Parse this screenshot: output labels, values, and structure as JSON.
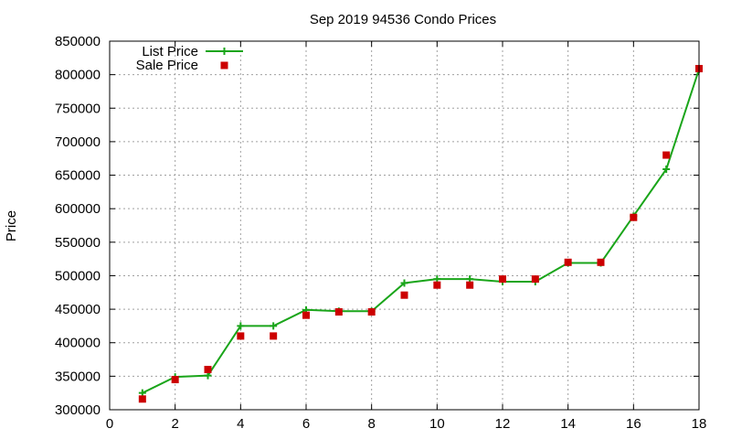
{
  "chart_data": {
    "type": "line",
    "title": "Sep 2019 94536 Condo Prices",
    "xlabel": "",
    "ylabel": "Price",
    "xlim": [
      0,
      18
    ],
    "ylim": [
      300000,
      850000
    ],
    "x_ticks": [
      0,
      2,
      4,
      6,
      8,
      10,
      12,
      14,
      16,
      18
    ],
    "y_ticks": [
      300000,
      350000,
      400000,
      450000,
      500000,
      550000,
      600000,
      650000,
      700000,
      750000,
      800000,
      850000
    ],
    "x_tick_labels": [
      "0",
      "2",
      "4",
      "6",
      "8",
      "10",
      "12",
      "14",
      "16",
      "18"
    ],
    "y_tick_labels": [
      "300000",
      "350000",
      "400000",
      "450000",
      "500000",
      "550000",
      "600000",
      "650000",
      "700000",
      "750000",
      "800000",
      "850000"
    ],
    "grid": true,
    "legend_position": "top-left",
    "series": [
      {
        "name": "List Price",
        "style": "line+plus",
        "color": "#1aa51a",
        "x": [
          1,
          2,
          3,
          4,
          5,
          6,
          7,
          8,
          9,
          10,
          11,
          12,
          13,
          14,
          15,
          16,
          17,
          18
        ],
        "y": [
          325000,
          349000,
          351000,
          425000,
          425000,
          449000,
          447000,
          447000,
          489000,
          495000,
          495000,
          491000,
          491000,
          519000,
          519000,
          589000,
          659000,
          808000
        ]
      },
      {
        "name": "Sale Price",
        "style": "square",
        "color": "#cc0000",
        "x": [
          1,
          2,
          3,
          4,
          5,
          6,
          7,
          8,
          9,
          10,
          11,
          12,
          13,
          14,
          15,
          16,
          17,
          18
        ],
        "y": [
          316000,
          345000,
          360000,
          410000,
          410000,
          441000,
          446000,
          446000,
          471000,
          486000,
          486000,
          495000,
          495000,
          520000,
          520000,
          587000,
          680000,
          809000
        ]
      }
    ]
  }
}
